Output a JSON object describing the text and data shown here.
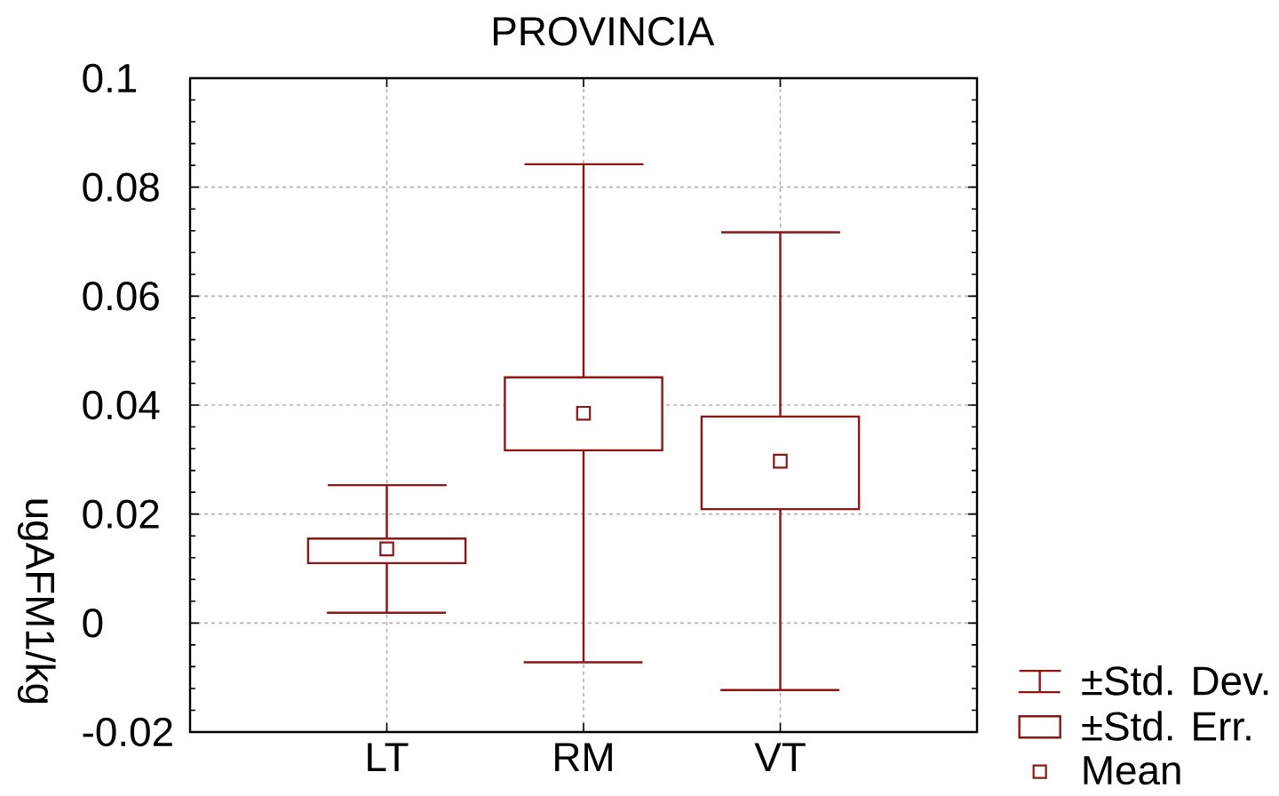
{
  "chart_data": {
    "type": "scatter",
    "title": "PROVINCIA",
    "ylabel": "ugAFM1/kg",
    "categories": [
      "LT",
      "RM",
      "VT"
    ],
    "series": [
      {
        "name": "±Std. Dev.",
        "marker": "none",
        "color": "#8c1515",
        "values": [
          null,
          null,
          null
        ]
      },
      {
        "name": "±Std. Err.",
        "type": "bar",
        "color": "#8c1515",
        "base": [
          0.011,
          0.0317,
          0.0209
        ],
        "values": [
          0.0045,
          0.0134,
          0.017
        ]
      },
      {
        "name": "Mean",
        "marker": "square",
        "color": "#8c1515",
        "values": [
          0.0136,
          0.0385,
          0.0297
        ],
        "errors": [
          0.0117,
          0.0457,
          0.042
        ]
      }
    ],
    "ylim": [
      -0.02,
      0.1
    ],
    "yticks": [
      -0.02,
      0,
      0.02,
      0.04,
      0.06,
      0.08,
      0.1
    ],
    "grid": true,
    "legend": "bottom right"
  }
}
